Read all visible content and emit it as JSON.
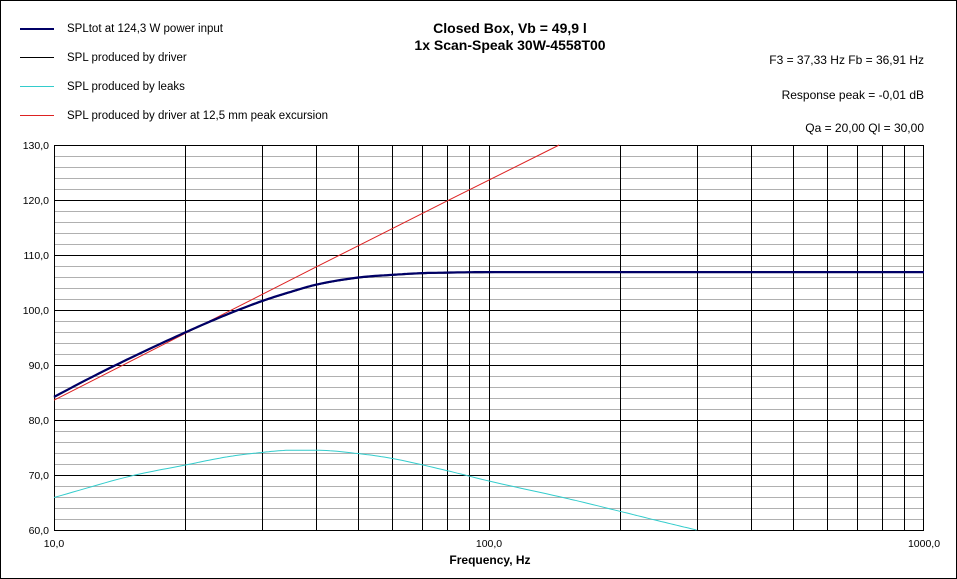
{
  "legend": [
    {
      "label": "SPLtot at 124,3 W power input",
      "color": "#000066"
    },
    {
      "label": "SPL produced by driver",
      "color": "#000000"
    },
    {
      "label": "SPL produced by leaks",
      "color": "#33CCCC"
    },
    {
      "label": "SPL produced by driver at 12,5 mm peak excursion",
      "color": "#DD2222"
    }
  ],
  "title_line1": "Closed Box, Vb = 49,9 l",
  "title_line2": "1x Scan-Speak 30W-4558T00",
  "info": {
    "f3_fb": "F3 = 37,33  Hz   Fb = 36,91  Hz",
    "response_peak": "Response peak = -0,01  dB",
    "qa_ql": "Qa = 20,00   Ql = 30,00"
  },
  "chart_data": {
    "type": "line",
    "xscale": "log",
    "xlabel": "Frequency, Hz",
    "ylabel": "",
    "xlim": [
      10,
      1000
    ],
    "ylim": [
      60,
      130
    ],
    "x_tick_labels": [
      "10,0",
      "100,0",
      "1000,0"
    ],
    "y_tick_labels": [
      "60,0",
      "70,0",
      "80,0",
      "90,0",
      "100,0",
      "110,0",
      "120,0",
      "130,0"
    ],
    "grid": true,
    "series": [
      {
        "name": "SPLtot at 124,3 W power input",
        "color": "#000066",
        "x": [
          10,
          12,
          15,
          20,
          25,
          30,
          35,
          40,
          50,
          60,
          70,
          80,
          100,
          150,
          200,
          300,
          500,
          700,
          1000
        ],
        "y": [
          84.2,
          87.5,
          91.3,
          95.9,
          99.2,
          101.6,
          103.3,
          104.6,
          105.9,
          106.4,
          106.7,
          106.8,
          106.9,
          106.9,
          106.9,
          106.9,
          106.9,
          106.9,
          106.9
        ]
      },
      {
        "name": "SPL produced by driver",
        "color": "#000000",
        "x": [
          10,
          12,
          15,
          20,
          25,
          30,
          35,
          40,
          50,
          60,
          70,
          80,
          100,
          150,
          200,
          300,
          500,
          700,
          1000
        ],
        "y": [
          84.1,
          87.4,
          91.2,
          95.8,
          99.1,
          101.5,
          103.2,
          104.5,
          105.8,
          106.3,
          106.6,
          106.7,
          106.8,
          106.9,
          106.9,
          106.9,
          106.9,
          106.9,
          106.9
        ]
      },
      {
        "name": "SPL produced by leaks",
        "color": "#33CCCC",
        "x": [
          10,
          15,
          20,
          25,
          30,
          35,
          40,
          50,
          60,
          80,
          100,
          150,
          200,
          250,
          300
        ],
        "y": [
          65.9,
          69.8,
          71.8,
          73.3,
          74.1,
          74.5,
          74.5,
          73.9,
          73.0,
          70.8,
          68.9,
          65.8,
          63.4,
          61.5,
          60.0
        ]
      },
      {
        "name": "SPL produced by driver at 12,5 mm peak excursion",
        "color": "#DD2222",
        "x": [
          10,
          20,
          40,
          80,
          145
        ],
        "y": [
          83.6,
          95.7,
          107.8,
          119.8,
          130.0
        ]
      }
    ]
  }
}
